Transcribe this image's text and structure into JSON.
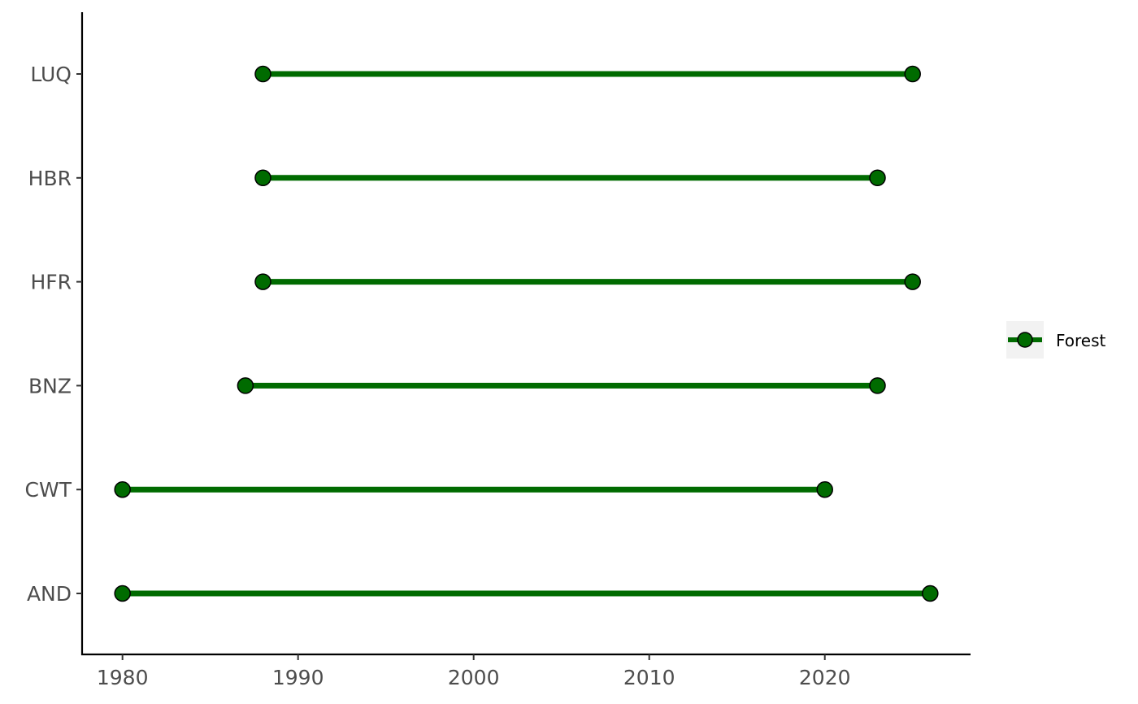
{
  "chart_data": {
    "type": "dumbbell",
    "title": "",
    "xlabel": "",
    "ylabel": "",
    "xlim": [
      1977.7,
      2028.3
    ],
    "x_ticks": [
      1980,
      1990,
      2000,
      2010,
      2020
    ],
    "categories": [
      "AND",
      "CWT",
      "BNZ",
      "HFR",
      "HBR",
      "LUQ"
    ],
    "series": [
      {
        "name": "Forest",
        "color": "#006b00",
        "ranges": [
          {
            "site": "AND",
            "start": 1980,
            "end": 2026
          },
          {
            "site": "CWT",
            "start": 1980,
            "end": 2020
          },
          {
            "site": "BNZ",
            "start": 1987,
            "end": 2023
          },
          {
            "site": "HFR",
            "start": 1988,
            "end": 2025
          },
          {
            "site": "HBR",
            "start": 1988,
            "end": 2023
          },
          {
            "site": "LUQ",
            "start": 1988,
            "end": 2025
          }
        ]
      }
    ],
    "legend": {
      "position": "right",
      "items": [
        "Forest"
      ]
    },
    "grid": false
  }
}
